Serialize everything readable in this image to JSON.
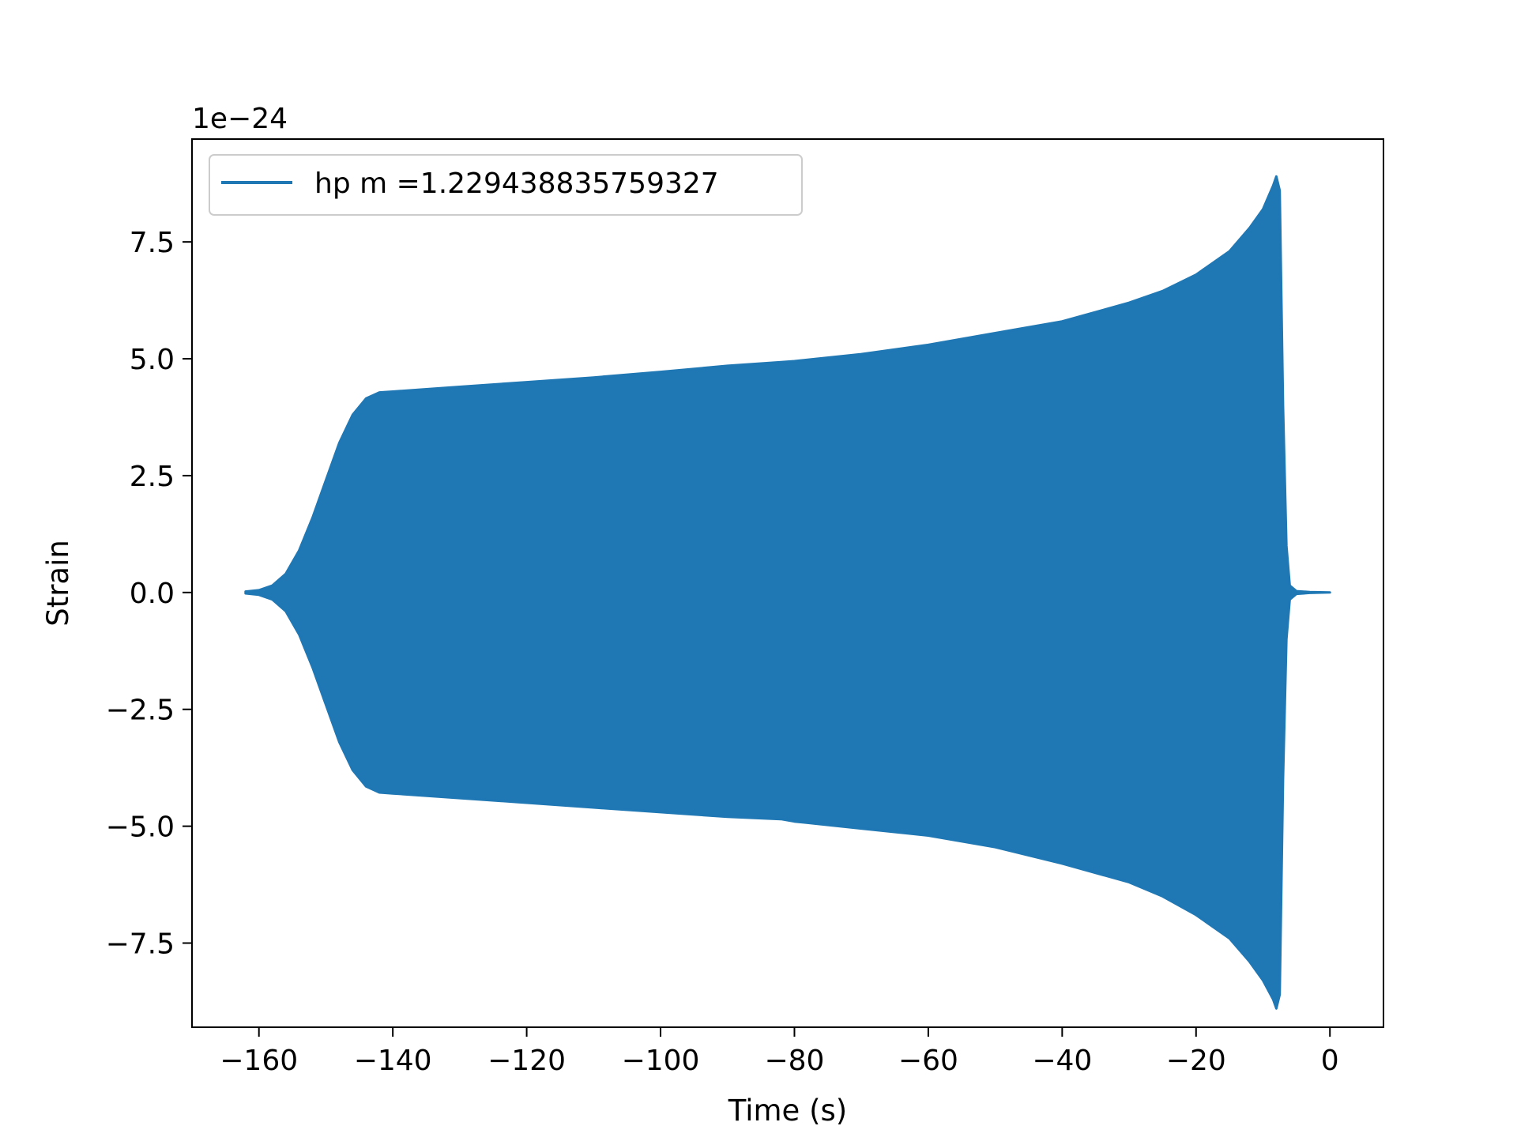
{
  "chart_data": {
    "type": "line",
    "title": "",
    "xlabel": "Time (s)",
    "ylabel": "Strain",
    "y_offset_label": "1e−24",
    "y_scale": 1e-24,
    "xlim": [
      -170,
      8
    ],
    "ylim": [
      -9.3,
      9.7
    ],
    "xticks": [
      -160,
      -140,
      -120,
      -100,
      -80,
      -60,
      -40,
      -20,
      0
    ],
    "xtick_labels": [
      "−160",
      "−140",
      "−120",
      "−100",
      "−80",
      "−60",
      "−40",
      "−20",
      "0"
    ],
    "yticks": [
      -7.5,
      -5.0,
      -2.5,
      0.0,
      2.5,
      5.0,
      7.5
    ],
    "ytick_labels": [
      "−7.5",
      "−5.0",
      "−2.5",
      "0.0",
      "2.5",
      "5.0",
      "7.5"
    ],
    "grid": false,
    "legend_position": "upper-left",
    "series": [
      {
        "name": "hp m =1.229438835759327",
        "color": "#1f77b4",
        "envelope": {
          "t": [
            -162,
            -160,
            -158,
            -156,
            -154,
            -152,
            -150,
            -148,
            -146,
            -144,
            -142,
            -140,
            -130,
            -120,
            -110,
            -100,
            -90,
            -82,
            -80,
            -70,
            -60,
            -50,
            -40,
            -30,
            -25,
            -20,
            -15,
            -12,
            -10,
            -8.5,
            -8,
            -7.5,
            -7,
            -6.5,
            -6,
            -5,
            -3,
            0
          ],
          "upper": [
            0.02,
            0.05,
            0.15,
            0.4,
            0.9,
            1.6,
            2.4,
            3.2,
            3.8,
            4.15,
            4.28,
            4.3,
            4.4,
            4.5,
            4.6,
            4.72,
            4.85,
            4.93,
            4.95,
            5.1,
            5.3,
            5.55,
            5.8,
            6.2,
            6.45,
            6.8,
            7.3,
            7.8,
            8.2,
            8.7,
            8.9,
            8.6,
            4.0,
            1.0,
            0.15,
            0.03,
            0.01,
            0.0
          ],
          "lower": [
            -0.02,
            -0.05,
            -0.15,
            -0.4,
            -0.9,
            -1.6,
            -2.4,
            -3.2,
            -3.8,
            -4.15,
            -4.28,
            -4.3,
            -4.4,
            -4.5,
            -4.6,
            -4.7,
            -4.8,
            -4.85,
            -4.9,
            -5.05,
            -5.2,
            -5.45,
            -5.8,
            -6.2,
            -6.5,
            -6.9,
            -7.4,
            -7.9,
            -8.3,
            -8.7,
            -8.9,
            -8.6,
            -4.0,
            -1.0,
            -0.15,
            -0.03,
            -0.01,
            0.0
          ]
        }
      }
    ]
  }
}
